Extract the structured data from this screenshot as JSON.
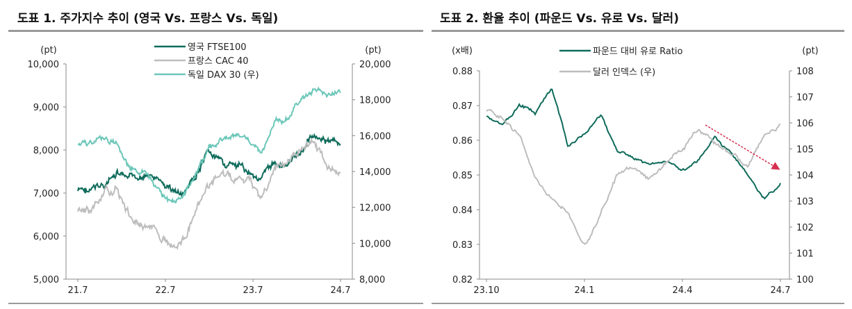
{
  "chart_data": [
    {
      "type": "line",
      "title": "도표 1. 주가지수 추이 (영국 Vs. 프랑스 Vs. 독일)",
      "y_unit_left": "(pt)",
      "y_unit_right": "(pt)",
      "x_ticks": [
        "21.7",
        "22.7",
        "23.7",
        "24.7"
      ],
      "ylim_left": [
        5000,
        10000
      ],
      "yticks_left": [
        "5,000",
        "6,000",
        "7,000",
        "8,000",
        "9,000",
        "10,000"
      ],
      "ylim_right": [
        8000,
        20000
      ],
      "yticks_right": [
        "8,000",
        "10,000",
        "12,000",
        "14,000",
        "16,000",
        "18,000",
        "20,000"
      ],
      "x_months": [
        "21.7",
        "21.9",
        "21.11",
        "22.1",
        "22.3",
        "22.5",
        "22.7",
        "22.9",
        "22.10",
        "22.12",
        "23.2",
        "23.4",
        "23.6",
        "23.8",
        "23.10",
        "23.12",
        "24.2",
        "24.3",
        "24.5",
        "24.6",
        "24.7"
      ],
      "legend_placement": "top-center",
      "series": [
        {
          "name": "영국 FTSE100",
          "axis": "left",
          "color": "#0e6b5a",
          "values": [
            7050,
            7050,
            7200,
            7400,
            7300,
            7450,
            7300,
            7100,
            6950,
            7400,
            7900,
            7700,
            7600,
            7500,
            7350,
            7700,
            7650,
            7950,
            8400,
            8200,
            8150
          ]
        },
        {
          "name": "프랑스 CAC 40",
          "axis": "left",
          "color": "#bdbdbd",
          "values": [
            6550,
            6600,
            7000,
            7100,
            6400,
            6300,
            6100,
            5800,
            5900,
            6500,
            7200,
            7450,
            7300,
            7300,
            6900,
            7550,
            7700,
            8100,
            8200,
            7600,
            7500
          ]
        },
        {
          "name": "독일 DAX 30 (우)",
          "axis": "right",
          "color": "#6cc7b9",
          "values": [
            15500,
            15600,
            15900,
            15500,
            14000,
            14000,
            13000,
            12300,
            12600,
            14000,
            15300,
            15800,
            16000,
            15800,
            15000,
            16700,
            17000,
            18000,
            18600,
            18300,
            18400
          ]
        }
      ]
    },
    {
      "type": "line",
      "title": "도표 2. 환율 추이 (파운드 Vs. 유로 Vs. 달러)",
      "y_unit_left": "(x배)",
      "y_unit_right": "(pt)",
      "x_ticks": [
        "23.10",
        "24.1",
        "24.4",
        "24.7"
      ],
      "ylim_left": [
        0.82,
        0.88
      ],
      "yticks_left": [
        "0.82",
        "0.83",
        "0.84",
        "0.85",
        "0.86",
        "0.87",
        "0.88"
      ],
      "ylim_right": [
        100,
        108
      ],
      "yticks_right": [
        "100",
        "101",
        "102",
        "103",
        "104",
        "105",
        "106",
        "107",
        "108"
      ],
      "x_halfmonths": [
        "23.10",
        "23.10b",
        "23.11",
        "23.11b",
        "23.12",
        "23.12b",
        "24.1",
        "24.1b",
        "24.2",
        "24.2b",
        "24.3",
        "24.3b",
        "24.4",
        "24.4b",
        "24.5",
        "24.5b",
        "24.6",
        "24.6b",
        "24.7"
      ],
      "legend_placement": "top-center",
      "series": [
        {
          "name": "파운드 대비 유로 Ratio",
          "axis": "left",
          "color": "#0e6b5a",
          "values": [
            0.867,
            0.864,
            0.87,
            0.868,
            0.875,
            0.858,
            0.862,
            0.867,
            0.857,
            0.855,
            0.853,
            0.854,
            0.852,
            0.854,
            0.861,
            0.856,
            0.85,
            0.843,
            0.847
          ]
        },
        {
          "name": "달러 인덱스 (우)",
          "axis": "right",
          "color": "#bdbdbd",
          "values": [
            106.5,
            106.2,
            105.5,
            104,
            103,
            102.5,
            101.3,
            102.5,
            104,
            104.2,
            103.8,
            104.5,
            105,
            105.8,
            105.2,
            104.8,
            104.3,
            105.5,
            105.9
          ]
        }
      ],
      "annotation": {
        "type": "arrow",
        "color": "#d62f4f",
        "from": [
          "24.5",
          "0.865"
        ],
        "to": [
          "24.7",
          "0.851"
        ]
      }
    }
  ]
}
